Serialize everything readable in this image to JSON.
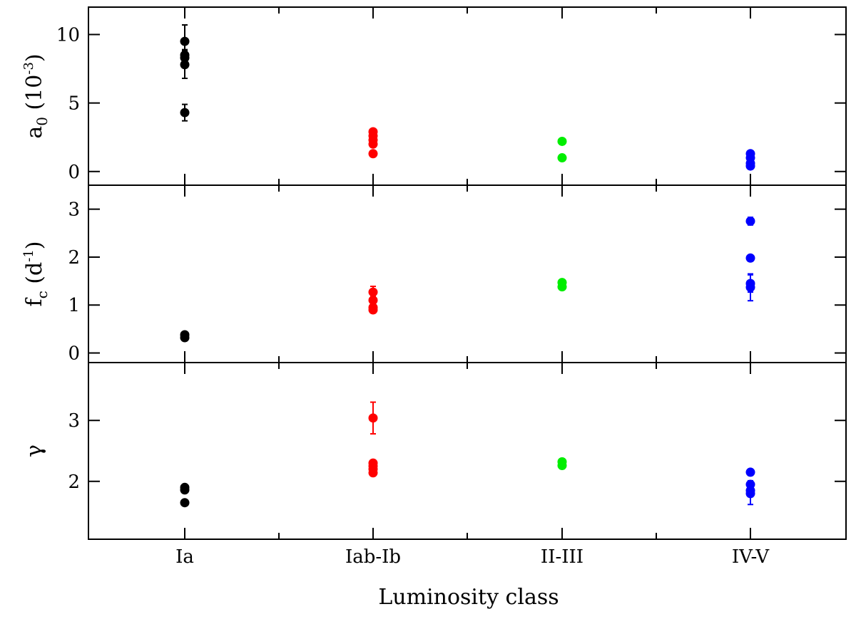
{
  "chart_data": {
    "type": "scatter",
    "xlabel": "Luminosity class",
    "categories": [
      "Ia",
      "Iab-Ib",
      "II-III",
      "IV-V"
    ],
    "category_colors": [
      "#000000",
      "#ff0000",
      "#00ee00",
      "#0000ff"
    ],
    "panels": [
      {
        "id": "a0",
        "ylabel_main": "a",
        "ylabel_sub": "0",
        "ylabel_rest": " (10",
        "ylabel_sup": "-3",
        "ylabel_end": ")",
        "ylim": [
          -1,
          12
        ],
        "yticks": [
          0,
          5,
          10
        ],
        "ytick_labels": [
          "0",
          "5",
          "10"
        ],
        "points": [
          {
            "cat": 0,
            "y": 9.5,
            "err": 1.2
          },
          {
            "cat": 0,
            "y": 8.5,
            "err": 0.4
          },
          {
            "cat": 0,
            "y": 8.3,
            "err": 0.4
          },
          {
            "cat": 0,
            "y": 7.8,
            "err": 1.0
          },
          {
            "cat": 0,
            "y": 4.3,
            "err": 0.6
          },
          {
            "cat": 1,
            "y": 2.9,
            "err": 0.2
          },
          {
            "cat": 1,
            "y": 2.6,
            "err": 0.2
          },
          {
            "cat": 1,
            "y": 2.3,
            "err": 0.2
          },
          {
            "cat": 1,
            "y": 2.0,
            "err": 0.2
          },
          {
            "cat": 1,
            "y": 1.3,
            "err": 0.2
          },
          {
            "cat": 2,
            "y": 2.2,
            "err": 0.1
          },
          {
            "cat": 2,
            "y": 1.0,
            "err": 0.1
          },
          {
            "cat": 3,
            "y": 1.3,
            "err": 0.1
          },
          {
            "cat": 3,
            "y": 1.0,
            "err": 0.1
          },
          {
            "cat": 3,
            "y": 0.6,
            "err": 0.1
          },
          {
            "cat": 3,
            "y": 0.4,
            "err": 0.1
          }
        ]
      },
      {
        "id": "fc",
        "ylabel_main": "f",
        "ylabel_sub": "c",
        "ylabel_rest": " (d",
        "ylabel_sup": "-1",
        "ylabel_end": ")",
        "ylim": [
          -0.2,
          3.5
        ],
        "yticks": [
          0,
          1,
          2,
          3
        ],
        "ytick_labels": [
          "0",
          "1",
          "2",
          "3"
        ],
        "points": [
          {
            "cat": 0,
            "y": 0.38,
            "err": 0.04
          },
          {
            "cat": 0,
            "y": 0.32,
            "err": 0.04
          },
          {
            "cat": 1,
            "y": 1.27,
            "err": 0.12
          },
          {
            "cat": 1,
            "y": 1.1,
            "err": 0.08
          },
          {
            "cat": 1,
            "y": 0.95,
            "err": 0.06
          },
          {
            "cat": 1,
            "y": 0.9,
            "err": 0.06
          },
          {
            "cat": 2,
            "y": 1.47,
            "err": 0.05
          },
          {
            "cat": 2,
            "y": 1.38,
            "err": 0.05
          },
          {
            "cat": 3,
            "y": 2.75,
            "err": 0.08
          },
          {
            "cat": 3,
            "y": 1.98,
            "err": 0.06
          },
          {
            "cat": 3,
            "y": 1.45,
            "err": 0.18
          },
          {
            "cat": 3,
            "y": 1.37,
            "err": 0.28
          }
        ]
      },
      {
        "id": "gamma",
        "ylabel_main": "γ",
        "ylabel_sub": "",
        "ylabel_rest": "",
        "ylabel_sup": "",
        "ylabel_end": "",
        "ylim": [
          1.05,
          3.95
        ],
        "yticks": [
          2,
          3
        ],
        "ytick_labels": [
          "2",
          "3"
        ],
        "points": [
          {
            "cat": 0,
            "y": 1.9,
            "err": 0.04
          },
          {
            "cat": 0,
            "y": 1.86,
            "err": 0.04
          },
          {
            "cat": 0,
            "y": 1.65,
            "err": 0.04
          },
          {
            "cat": 1,
            "y": 3.04,
            "err": 0.26
          },
          {
            "cat": 1,
            "y": 2.3,
            "err": 0.05
          },
          {
            "cat": 1,
            "y": 2.25,
            "err": 0.05
          },
          {
            "cat": 1,
            "y": 2.2,
            "err": 0.05
          },
          {
            "cat": 1,
            "y": 2.14,
            "err": 0.05
          },
          {
            "cat": 2,
            "y": 2.32,
            "err": 0.05
          },
          {
            "cat": 2,
            "y": 2.26,
            "err": 0.05
          },
          {
            "cat": 3,
            "y": 2.15,
            "err": 0.05
          },
          {
            "cat": 3,
            "y": 1.95,
            "err": 0.06
          },
          {
            "cat": 3,
            "y": 1.85,
            "err": 0.1
          },
          {
            "cat": 3,
            "y": 1.8,
            "err": 0.18
          }
        ]
      }
    ]
  }
}
